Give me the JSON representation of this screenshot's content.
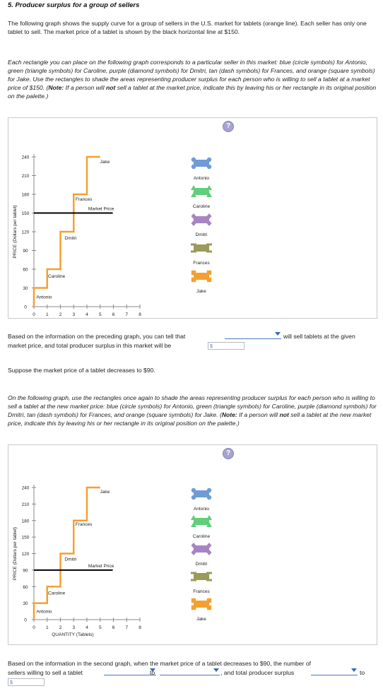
{
  "title": "5. Producer surplus for a group of sellers",
  "intro": "The following graph shows the supply curve for a group of sellers in the U.S. market for tablets (orange line). Each seller has only one tablet to sell. The market price of a tablet is shown by the black horizontal line at $150.",
  "instructions1": {
    "lead": "Each rectangle you can place on the following graph corresponds to a particular seller in this market: blue (circle symbols) for Antonio, green (triangle symbols) for Caroline, purple (diamond symbols) for Dmitri, tan (dash symbols) for Frances, and orange (square symbols) for Jake. Use the rectangles to shade the areas representing producer surplus for each person who is willing to sell a tablet at a market price of $150. (",
    "note_label": "Note:",
    "note_mid": " If a person will ",
    "not_word": "not",
    "note_tail": " sell a tablet at the market price, indicate this by leaving his or her rectangle in its original position on the palette.)"
  },
  "help_icon": "?",
  "graph1": {
    "ylabel": "PRICE (Dollars per tablet)",
    "xlabel": "QUANTITY (Tablets)",
    "yticks": [
      "0",
      "30",
      "60",
      "90",
      "120",
      "150",
      "180",
      "210",
      "240"
    ],
    "xticks": [
      "0",
      "1",
      "2",
      "3",
      "4",
      "5",
      "6",
      "7",
      "8"
    ],
    "market_price_label": "Market Price",
    "seller_labels": [
      "Antonio",
      "Caroline",
      "Dmitri",
      "Frances",
      "Jake"
    ]
  },
  "question1": {
    "part1": "Based on the information on the preceding graph, you can tell that",
    "part2": "will sell tablets at the given",
    "part3": "market price, and total producer surplus in this market will be",
    "currency": "$"
  },
  "suppose": "Suppose the market price of a tablet decreases to $90.",
  "instructions2": {
    "lead": "On the following graph, use the rectangles once again to shade the areas representing producer surplus for each person who is willing to sell a tablet at the new market price: blue (circle symbols) for Antonio, green (triangle symbols) for Caroline, purple (diamond symbols) for Dmitri, tan (dash symbols) for Frances, and orange (square symbols) for Jake. (",
    "note_label": "Note:",
    "note_mid": " If a person will ",
    "not_word": "not",
    "note_tail": " sell a tablet at the new market price, indicate this by leaving his or her rectangle in its original position on the palette.)"
  },
  "graph2": {
    "ylabel": "PRICE (Dollars per tablet)",
    "xlabel": "QUANTITY (Tablets)",
    "yticks": [
      "0",
      "30",
      "60",
      "90",
      "120",
      "150",
      "180",
      "210",
      "240"
    ],
    "xticks": [
      "0",
      "1",
      "2",
      "3",
      "4",
      "5",
      "6",
      "7",
      "8"
    ],
    "market_price_label": "Market Price",
    "seller_labels": [
      "Antonio",
      "Caroline",
      "Dmitri",
      "Frances",
      "Jake"
    ]
  },
  "question2": {
    "part1": "Based on the information in the second graph, when the market price of a tablet decreases to $90, the number of",
    "part2": "sellers willing to sell a tablet",
    "to1": "to",
    "part3": ", and total producer surplus",
    "to2": "to",
    "currency": "$"
  },
  "palette": [
    {
      "name": "Antonio",
      "color": "#6f9bd6",
      "icon": "circle-icon"
    },
    {
      "name": "Caroline",
      "color": "#5fcf7a",
      "icon": "triangle-icon"
    },
    {
      "name": "Dmitri",
      "color": "#a884c4",
      "icon": "diamond-icon"
    },
    {
      "name": "Frances",
      "color": "#9a9a5a",
      "icon": "dash-icon"
    },
    {
      "name": "Jake",
      "color": "#f4a031",
      "icon": "square-icon"
    }
  ],
  "chart_data": [
    {
      "type": "line",
      "xlabel": "QUANTITY (Tablets)",
      "ylabel": "PRICE (Dollars per tablet)",
      "xlim": [
        0,
        8
      ],
      "ylim": [
        0,
        240
      ],
      "supply_steps": [
        {
          "seller": "Antonio",
          "price": 30,
          "quantity_from": 0,
          "quantity_to": 1
        },
        {
          "seller": "Caroline",
          "price": 60,
          "quantity_from": 1,
          "quantity_to": 2
        },
        {
          "seller": "Dmitri",
          "price": 120,
          "quantity_from": 2,
          "quantity_to": 3
        },
        {
          "seller": "Frances",
          "price": 180,
          "quantity_from": 3,
          "quantity_to": 4
        },
        {
          "seller": "Jake",
          "price": 240,
          "quantity_from": 4,
          "quantity_to": 5
        }
      ],
      "supply_color": "#f4a031",
      "market_price": 150,
      "market_price_color": "#000000"
    },
    {
      "type": "line",
      "xlabel": "QUANTITY (Tablets)",
      "ylabel": "PRICE (Dollars per tablet)",
      "xlim": [
        0,
        8
      ],
      "ylim": [
        0,
        240
      ],
      "supply_steps": [
        {
          "seller": "Antonio",
          "price": 30,
          "quantity_from": 0,
          "quantity_to": 1
        },
        {
          "seller": "Caroline",
          "price": 60,
          "quantity_from": 1,
          "quantity_to": 2
        },
        {
          "seller": "Dmitri",
          "price": 120,
          "quantity_from": 2,
          "quantity_to": 3
        },
        {
          "seller": "Frances",
          "price": 180,
          "quantity_from": 3,
          "quantity_to": 4
        },
        {
          "seller": "Jake",
          "price": 240,
          "quantity_from": 4,
          "quantity_to": 5
        }
      ],
      "supply_color": "#f4a031",
      "market_price": 90,
      "market_price_color": "#000000"
    }
  ]
}
